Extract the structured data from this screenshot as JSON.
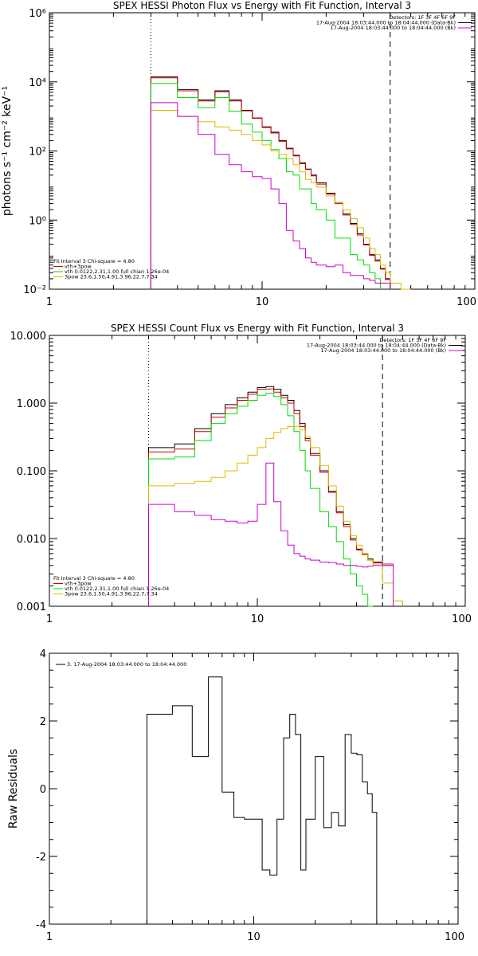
{
  "chart_data": [
    {
      "type": "line",
      "title": "SPEX HESSI Photon Flux vs Energy with Fit Function, Interval 3",
      "xlabel": "",
      "ylabel": "photons s⁻¹ cm⁻² keV⁻¹",
      "xscale": "log",
      "yscale": "log",
      "xlim": [
        1,
        100
      ],
      "ylim": [
        0.01,
        1000000
      ],
      "xticks": [
        1,
        10,
        100
      ],
      "xtick_labels": [
        "1",
        "10",
        "100"
      ],
      "yticks": [
        0.01,
        1,
        100,
        10000,
        1000000
      ],
      "ytick_labels": [
        "10⁻²",
        "10⁰",
        "10²",
        "10⁴",
        "10⁶"
      ],
      "vlines": [
        {
          "x": 3,
          "style": "dotted"
        },
        {
          "x": 40,
          "style": "dashed"
        }
      ],
      "legend_top": [
        {
          "text": "Detectors: 1F 3F 4F 6F 9F",
          "color": ""
        },
        {
          "text": "17-Aug-2004 18:03:44.000 to 18:04:44.000 (Data-Bk)",
          "color": "#000000"
        },
        {
          "text": "17-Aug-2004 18:03:44.000 to 18:04:44.000 (Bk)",
          "color": "#cc00cc"
        }
      ],
      "legend_bottom": [
        {
          "text": "Fit Interval 3   Chi-square = 4.80",
          "color": ""
        },
        {
          "text": "vth+3pow",
          "color": "#cc0000"
        },
        {
          "text": "vth 0.0122,2.31,1.00  full chian 1.26e-04",
          "color": "#00dd00"
        },
        {
          "text": "3pow 23.6,1.50,4.91,3.96,22.7,7.34",
          "color": "#ddbb00"
        }
      ],
      "bin_edges": [
        3,
        3.5,
        4,
        4.5,
        5,
        5.5,
        6,
        6.5,
        7,
        7.5,
        8,
        8.5,
        9,
        9.5,
        10,
        11,
        12,
        13,
        14,
        15,
        16,
        17,
        18,
        20,
        22,
        24,
        26,
        28,
        30,
        32,
        34,
        36,
        38,
        40,
        45,
        50
      ],
      "series": [
        {
          "name": "",
          "color": "#000000",
          "values": [
            14000,
            14000,
            6000,
            6000,
            3000,
            3000,
            5500,
            5500,
            3000,
            3000,
            1500,
            1500,
            900,
            900,
            500,
            350,
            200,
            120,
            75,
            45,
            30,
            20,
            12,
            6,
            3.2,
            1.5,
            0.8,
            0.4,
            0.2,
            0.1,
            0.07,
            0.04,
            0.02,
            0.01,
            null
          ]
        },
        {
          "name": "",
          "color": "#cc0000",
          "values": [
            13000,
            13000,
            5500,
            5500,
            2800,
            2800,
            5200,
            5200,
            2800,
            2800,
            1450,
            1450,
            880,
            880,
            480,
            330,
            190,
            115,
            72,
            43,
            29,
            19,
            11,
            5.6,
            3.0,
            1.4,
            0.75,
            0.37,
            0.19,
            0.095,
            0.065,
            0.038,
            0.019,
            null,
            null
          ]
        },
        {
          "name": "",
          "color": "#00dd00",
          "values": [
            9000,
            9000,
            3500,
            3500,
            1800,
            1800,
            3500,
            3500,
            1400,
            1400,
            600,
            600,
            350,
            350,
            200,
            110,
            60,
            25,
            20,
            8,
            8,
            3,
            2,
            1,
            0.3,
            0.3,
            0.1,
            0.07,
            0.05,
            0.03,
            0.02,
            null,
            null,
            null,
            null
          ]
        },
        {
          "name": "",
          "color": "#ddbb00",
          "values": [
            1500,
            1500,
            1000,
            1000,
            700,
            700,
            500,
            500,
            400,
            400,
            300,
            300,
            200,
            200,
            150,
            100,
            80,
            60,
            40,
            25,
            15,
            12,
            9,
            5,
            3.2,
            2,
            1.1,
            0.6,
            0.3,
            0.15,
            0.1,
            0.05,
            0.03,
            0.015,
            0.01
          ]
        },
        {
          "name": "",
          "color": "#cc00cc",
          "values": [
            2500,
            2500,
            1000,
            1000,
            300,
            300,
            80,
            80,
            40,
            40,
            25,
            25,
            18,
            18,
            16,
            8,
            3,
            0.5,
            0.25,
            0.15,
            0.08,
            0.06,
            0.05,
            0.045,
            0.05,
            0.03,
            0.025,
            0.025,
            0.02,
            0.018,
            0.015,
            0.015,
            0.015,
            null,
            null
          ]
        }
      ]
    },
    {
      "type": "line",
      "title": "SPEX HESSI Count Flux vs Energy with Fit Function, Interval 3",
      "xlabel": "",
      "ylabel": "",
      "xscale": "log",
      "yscale": "log",
      "xlim": [
        1,
        100
      ],
      "ylim": [
        0.001,
        10
      ],
      "xticks": [
        1,
        10,
        100
      ],
      "xtick_labels": [
        "1",
        "10",
        "100"
      ],
      "yticks": [
        0.001,
        0.01,
        0.1,
        1,
        10
      ],
      "ytick_labels": [
        "0.001",
        "0.010",
        "0.100",
        "1.000",
        "10.000"
      ],
      "vlines": [
        {
          "x": 3,
          "style": "dotted"
        },
        {
          "x": 40,
          "style": "dashed"
        }
      ],
      "legend_top": [
        {
          "text": "Detectors: 1F 3F 4F 6F 9F",
          "color": ""
        },
        {
          "text": "17-Aug-2004 18:03:44.000 to 18:04:44.000 (Data-Bk)",
          "color": "#000000"
        },
        {
          "text": "17-Aug-2004 18:03:44.000 to 18:04:44.000 (Bk)",
          "color": "#cc00cc"
        }
      ],
      "legend_bottom": [
        {
          "text": "Fit Interval 3   Chi-square = 4.80",
          "color": ""
        },
        {
          "text": "vth+3pow",
          "color": "#cc0000"
        },
        {
          "text": "vth 0.0122,2.31,1.00  full chian 1.26e-04",
          "color": "#00dd00"
        },
        {
          "text": "3pow 23.6,1.50,4.91,3.96,22.7,7.34",
          "color": "#ddbb00"
        }
      ],
      "bin_edges": [
        3,
        3.5,
        4,
        4.5,
        5,
        5.5,
        6,
        6.5,
        7,
        7.5,
        8,
        8.5,
        9,
        9.5,
        10,
        11,
        12,
        13,
        14,
        15,
        16,
        17,
        18,
        20,
        22,
        24,
        26,
        28,
        30,
        32,
        34,
        36,
        38,
        40,
        45,
        50
      ],
      "series": [
        {
          "name": "",
          "color": "#000000",
          "values": [
            0.22,
            0.22,
            0.25,
            0.25,
            0.42,
            0.42,
            0.7,
            0.7,
            0.95,
            0.95,
            1.2,
            1.2,
            1.45,
            1.45,
            1.7,
            1.75,
            1.6,
            1.3,
            1.1,
            0.78,
            0.5,
            0.3,
            0.18,
            0.1,
            0.05,
            0.025,
            0.016,
            0.01,
            0.007,
            0.006,
            0.005,
            0.0045,
            0.0045,
            0.0042,
            null
          ]
        },
        {
          "name": "",
          "color": "#cc0000",
          "values": [
            0.19,
            0.19,
            0.21,
            0.21,
            0.38,
            0.38,
            0.62,
            0.62,
            0.85,
            0.85,
            1.1,
            1.1,
            1.35,
            1.35,
            1.6,
            1.62,
            1.45,
            1.2,
            1.0,
            0.7,
            0.45,
            0.28,
            0.17,
            0.095,
            0.048,
            0.024,
            0.015,
            0.0095,
            0.0068,
            0.0058,
            0.0048,
            0.0044,
            0.0044,
            0.004,
            null
          ]
        },
        {
          "name": "",
          "color": "#00dd00",
          "values": [
            0.15,
            0.15,
            0.16,
            0.16,
            0.28,
            0.28,
            0.5,
            0.5,
            0.7,
            0.7,
            0.9,
            0.9,
            1.1,
            1.1,
            1.3,
            1.4,
            1.25,
            0.95,
            0.65,
            0.38,
            0.2,
            0.1,
            0.055,
            0.025,
            0.015,
            0.009,
            0.005,
            0.003,
            0.002,
            0.0015,
            0.0008,
            null,
            null,
            null,
            null
          ]
        },
        {
          "name": "",
          "color": "#ddbb00",
          "values": [
            0.06,
            0.06,
            0.065,
            0.065,
            0.07,
            0.07,
            0.08,
            0.08,
            0.1,
            0.1,
            0.13,
            0.13,
            0.17,
            0.17,
            0.22,
            0.3,
            0.37,
            0.42,
            0.45,
            0.45,
            0.4,
            0.32,
            0.22,
            0.12,
            0.06,
            0.03,
            0.018,
            0.011,
            0.008,
            0.006,
            0.0048,
            0.0042,
            0.0042,
            0.0022,
            0.0012
          ]
        },
        {
          "name": "",
          "color": "#cc00cc",
          "values": [
            0.032,
            0.032,
            0.025,
            0.025,
            0.022,
            0.022,
            0.019,
            0.019,
            0.018,
            0.018,
            0.017,
            0.017,
            0.018,
            0.018,
            0.032,
            0.13,
            0.035,
            0.013,
            0.008,
            0.006,
            0.0055,
            0.005,
            0.0048,
            0.0045,
            0.0044,
            0.0042,
            0.004,
            0.004,
            0.0039,
            0.0038,
            0.0039,
            0.004,
            0.004,
            0.0042,
            null
          ]
        }
      ]
    },
    {
      "type": "line",
      "title": "",
      "xlabel": "",
      "ylabel": "Raw Residuals",
      "xscale": "log",
      "yscale": "linear",
      "xlim": [
        1,
        100
      ],
      "ylim": [
        -4,
        4
      ],
      "xticks": [
        1,
        10,
        100
      ],
      "xtick_labels": [
        "1",
        "10",
        "100"
      ],
      "yticks": [
        -4,
        -2,
        0,
        2,
        4
      ],
      "ytick_labels": [
        "-4",
        "-2",
        "0",
        "2",
        "4"
      ],
      "vlines": [],
      "legend_top": [
        {
          "text": "3. 17-Aug-2004 18:03:44.000 to 18:04:44.000",
          "color": "#000000"
        }
      ],
      "legend_bottom": [],
      "bin_edges": [
        3,
        3.5,
        4,
        4.5,
        5,
        5.5,
        6,
        6.5,
        7,
        7.5,
        8,
        8.5,
        9,
        9.5,
        10,
        11,
        12,
        13,
        14,
        15,
        16,
        17,
        18,
        20,
        22,
        24,
        26,
        28,
        30,
        32,
        34,
        36,
        38,
        40
      ],
      "series": [
        {
          "name": "",
          "color": "#000000",
          "values": [
            2.2,
            2.2,
            2.45,
            2.45,
            0.95,
            0.95,
            3.3,
            3.3,
            -0.1,
            -0.1,
            -0.85,
            -0.85,
            -0.9,
            -0.9,
            -0.9,
            -2.4,
            -2.55,
            -0.9,
            1.5,
            2.2,
            1.6,
            -2.4,
            -0.9,
            0.95,
            -1.15,
            -0.7,
            -1.1,
            1.6,
            1.05,
            1.0,
            0.2,
            -0.15,
            -0.7
          ]
        }
      ]
    }
  ]
}
